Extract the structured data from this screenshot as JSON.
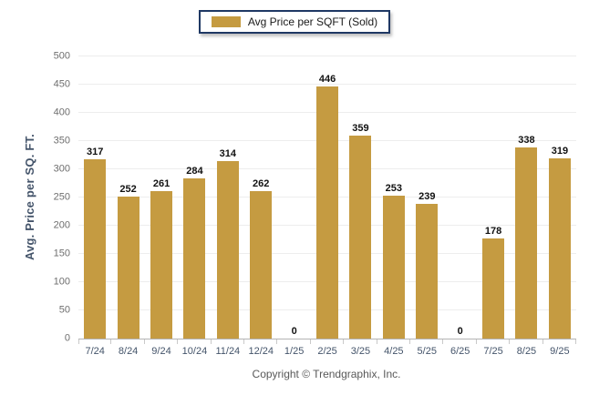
{
  "legend": {
    "label": "Avg Price per SQFT (Sold)"
  },
  "footer": {
    "copyright": "Copyright © Trendgraphix, Inc."
  },
  "colors": {
    "bar": "#C59B41",
    "legend_border": "#1F3864",
    "legend_text": "#1A1A1A",
    "axis_title": "#44546A",
    "y_tick_label": "#6E6E6E",
    "x_tick_label": "#44546A",
    "value_label": "#111111",
    "gridline": "#EDEDED",
    "baseline": "#B3B3B3",
    "axis_tick": "#C9C9C9",
    "copyright": "#595959",
    "background": "#FFFFFF"
  },
  "chart_data": {
    "type": "bar",
    "title": "Avg Price per SQFT (Sold)",
    "categories": [
      "7/24",
      "8/24",
      "9/24",
      "10/24",
      "11/24",
      "12/24",
      "1/25",
      "2/25",
      "3/25",
      "4/25",
      "5/25",
      "6/25",
      "7/25",
      "8/25",
      "9/25"
    ],
    "values": [
      317,
      252,
      261,
      284,
      314,
      262,
      0,
      446,
      359,
      253,
      239,
      0,
      178,
      338,
      319
    ],
    "xlabel": "",
    "ylabel": "Avg. Price per SQ. FT.",
    "ylim": [
      0,
      500
    ],
    "ytick_step": 50,
    "grid": true,
    "bar_color": "#C59B41",
    "legend_position": "top-center",
    "value_labels_shown": true
  }
}
